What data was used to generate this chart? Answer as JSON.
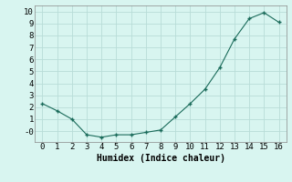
{
  "x": [
    0,
    1,
    2,
    3,
    4,
    5,
    6,
    7,
    8,
    9,
    10,
    11,
    12,
    13,
    14,
    15,
    16
  ],
  "y": [
    2.3,
    1.7,
    1.0,
    -0.3,
    -0.5,
    -0.3,
    -0.3,
    -0.1,
    0.1,
    1.2,
    2.3,
    3.5,
    5.3,
    7.7,
    9.4,
    9.9,
    9.1
  ],
  "xlabel": "Humidex (Indice chaleur)",
  "ylim": [
    -0.9,
    10.5
  ],
  "xlim": [
    -0.5,
    16.5
  ],
  "yticks": [
    0,
    1,
    2,
    3,
    4,
    5,
    6,
    7,
    8,
    9,
    10
  ],
  "xticks": [
    0,
    1,
    2,
    3,
    4,
    5,
    6,
    7,
    8,
    9,
    10,
    11,
    12,
    13,
    14,
    15,
    16
  ],
  "line_color": "#1a6b5a",
  "marker_color": "#1a6b5a",
  "bg_color": "#d8f5f0",
  "grid_color": "#b8ddd8",
  "xlabel_fontsize": 7,
  "tick_fontsize": 6.5
}
